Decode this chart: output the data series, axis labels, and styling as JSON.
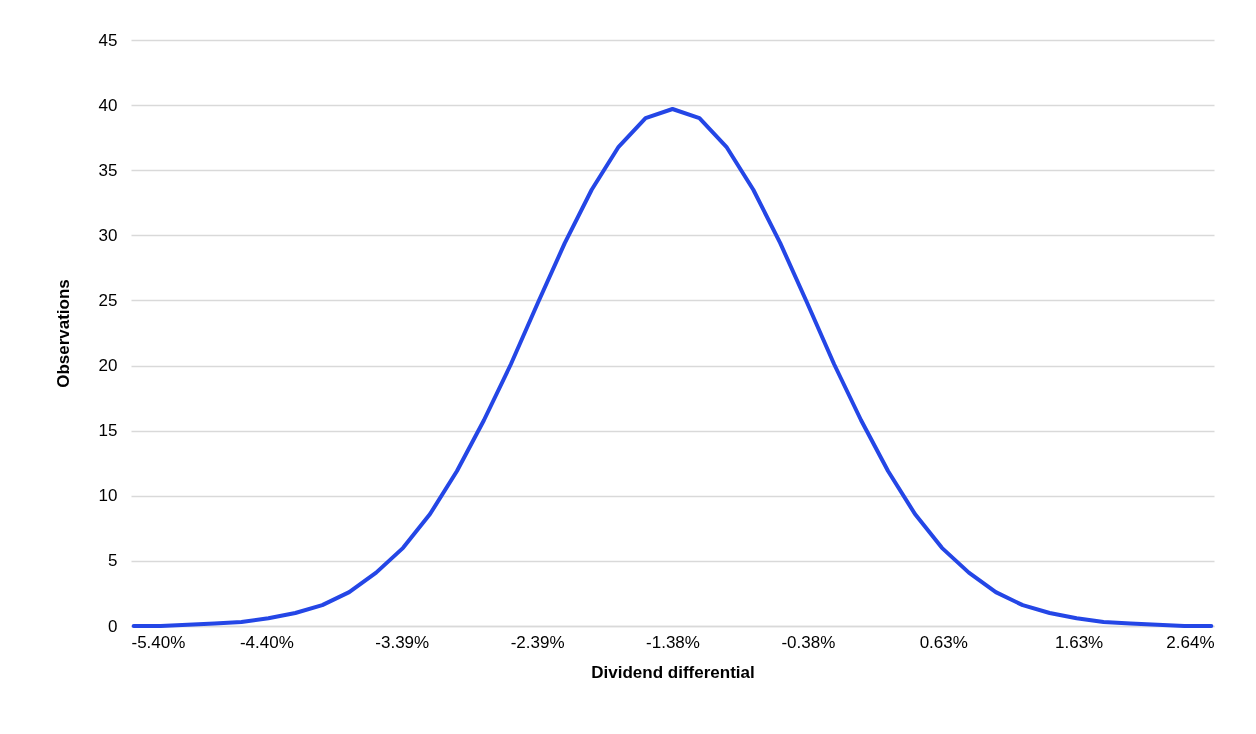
{
  "chart_data": {
    "type": "line",
    "xlabel": "Dividend differential",
    "ylabel": "Observations",
    "x": [
      -5.38,
      -5.18,
      -4.98,
      -4.78,
      -4.58,
      -4.38,
      -4.18,
      -3.98,
      -3.78,
      -3.58,
      -3.38,
      -3.18,
      -2.98,
      -2.78,
      -2.58,
      -2.38,
      -2.18,
      -1.98,
      -1.78,
      -1.58,
      -1.38,
      -1.18,
      -0.98,
      -0.78,
      -0.58,
      -0.38,
      -0.18,
      0.02,
      0.22,
      0.42,
      0.62,
      0.82,
      1.02,
      1.22,
      1.42,
      1.62,
      1.82,
      2.02,
      2.22,
      2.42,
      2.62
    ],
    "series": [
      {
        "color": "#2446e6",
        "values": [
          0,
          0,
          0.1,
          0.2,
          0.3,
          0.6,
          1,
          1.6,
          2.6,
          4.1,
          6,
          8.6,
          11.9,
          15.8,
          20.1,
          24.8,
          29.4,
          33.5,
          36.8,
          39,
          39.7,
          39,
          36.8,
          33.5,
          29.4,
          24.8,
          20.1,
          15.8,
          11.9,
          8.6,
          6,
          4.1,
          2.6,
          1.6,
          1,
          0.6,
          0.3,
          0.2,
          0.1,
          0,
          0
        ]
      }
    ],
    "xlim": [
      -5.4,
      2.64
    ],
    "xticks": [
      {
        "value": -5.4,
        "label": "-5.40%"
      },
      {
        "value": -4.395,
        "label": "-4.40%"
      },
      {
        "value": -3.39,
        "label": "-3.39%"
      },
      {
        "value": -2.385,
        "label": "-2.39%"
      },
      {
        "value": -1.38,
        "label": "-1.38%"
      },
      {
        "value": -0.375,
        "label": "-0.38%"
      },
      {
        "value": 0.63,
        "label": "0.63%"
      },
      {
        "value": 1.635,
        "label": "1.63%"
      },
      {
        "value": 2.64,
        "label": "2.64%"
      }
    ],
    "ylim": [
      0,
      45
    ],
    "yticks": [
      0,
      5,
      10,
      15,
      20,
      25,
      30,
      35,
      40,
      45
    ],
    "grid": "y",
    "marker": "none",
    "line_style": "solid"
  }
}
